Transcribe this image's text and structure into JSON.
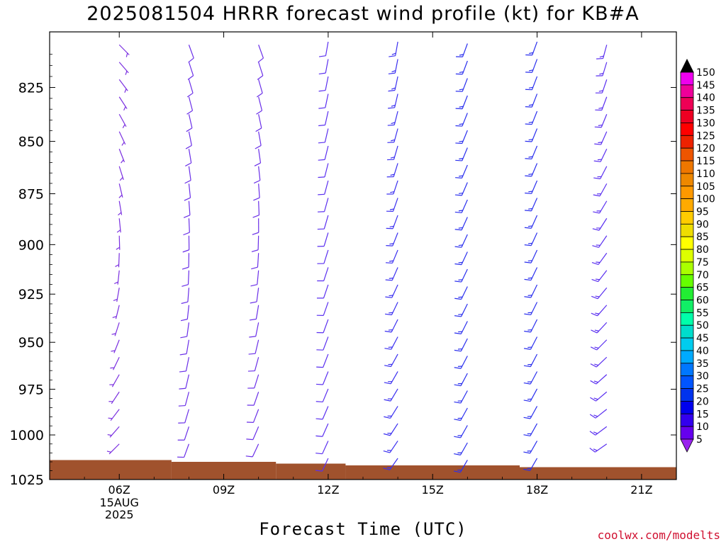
{
  "title": "2025081504 HRRR forecast wind profile (kt) for KB#A",
  "credit": "coolwx.com/modelts",
  "chart_data": {
    "type": "wind-barb-time-height",
    "xlabel": "Forecast Time (UTC)",
    "ylabel": "",
    "x_ticks": [
      {
        "hour": 6,
        "label": "06Z",
        "sublabels": [
          "15AUG",
          "2025"
        ]
      },
      {
        "hour": 9,
        "label": "09Z"
      },
      {
        "hour": 12,
        "label": "12Z"
      },
      {
        "hour": 15,
        "label": "15Z"
      },
      {
        "hour": 18,
        "label": "18Z"
      },
      {
        "hour": 21,
        "label": "21Z"
      }
    ],
    "xlim_hours": [
      4.0,
      22.0
    ],
    "y_ticks": [
      825,
      850,
      875,
      900,
      925,
      950,
      975,
      1000,
      1025
    ],
    "ylim_hPa": [
      800,
      1025
    ],
    "y_scale": "log-pressure (inverted)",
    "colorbar": {
      "unit": "kt",
      "labels": [
        150,
        145,
        140,
        135,
        130,
        125,
        120,
        115,
        110,
        105,
        100,
        95,
        90,
        85,
        80,
        75,
        70,
        65,
        60,
        55,
        50,
        45,
        40,
        35,
        30,
        25,
        20,
        15,
        10,
        5
      ],
      "colors": [
        "#ee00ee",
        "#ee0099",
        "#ee0055",
        "#ee0022",
        "#ff0000",
        "#ee2200",
        "#ee5500",
        "#ee7700",
        "#ee8800",
        "#ff9900",
        "#ffaa00",
        "#ffcc00",
        "#eedd00",
        "#ffff00",
        "#ddff00",
        "#aaff00",
        "#66ff00",
        "#22ee33",
        "#11ee66",
        "#00ffaa",
        "#00ddcc",
        "#00ccee",
        "#00aaff",
        "#0077ff",
        "#0055ff",
        "#0033ee",
        "#0000ee",
        "#3300ee",
        "#6600ee",
        "#9922ee"
      ]
    },
    "surface_pressure_hPa": [
      {
        "from_hour": 4.0,
        "to_hour": 7.5,
        "p": 1014
      },
      {
        "from_hour": 7.5,
        "to_hour": 10.5,
        "p": 1015
      },
      {
        "from_hour": 10.5,
        "to_hour": 12.5,
        "p": 1016
      },
      {
        "from_hour": 12.5,
        "to_hour": 17.5,
        "p": 1017
      },
      {
        "from_hour": 17.5,
        "to_hour": 22.0,
        "p": 1018
      }
    ],
    "surface_color": "#a0522d",
    "barb_columns": [
      {
        "hour": 6,
        "speed_kt": 5,
        "color": "#7a2fe0",
        "dir_upper_deg": 135,
        "dir_lower_deg": 225,
        "top_p": 805,
        "bottom_p": 1005
      },
      {
        "hour": 8,
        "speed_kt": 10,
        "color": "#6a2fe8",
        "dir_upper_deg": 160,
        "dir_lower_deg": 200,
        "top_p": 805,
        "bottom_p": 1005
      },
      {
        "hour": 10,
        "speed_kt": 10,
        "color": "#6a2fe8",
        "dir_upper_deg": 160,
        "dir_lower_deg": 205,
        "top_p": 805,
        "bottom_p": 1005
      },
      {
        "hour": 12,
        "speed_kt": 10,
        "color": "#5a2ff0",
        "dir_upper_deg": 190,
        "dir_lower_deg": 205,
        "top_p": 805,
        "bottom_p": 1013
      },
      {
        "hour": 14,
        "speed_kt": 15,
        "color": "#3a2ff0",
        "dir_upper_deg": 190,
        "dir_lower_deg": 215,
        "top_p": 805,
        "bottom_p": 1013
      },
      {
        "hour": 16,
        "speed_kt": 15,
        "color": "#2a2fee",
        "dir_upper_deg": 200,
        "dir_lower_deg": 210,
        "top_p": 805,
        "bottom_p": 1014
      },
      {
        "hour": 18,
        "speed_kt": 15,
        "color": "#2a2fee",
        "dir_upper_deg": 200,
        "dir_lower_deg": 210,
        "top_p": 805,
        "bottom_p": 1013
      },
      {
        "hour": 20,
        "speed_kt": 15,
        "color": "#5a2ff0",
        "dir_upper_deg": 195,
        "dir_lower_deg": 235,
        "top_p": 805,
        "bottom_p": 1005
      }
    ]
  }
}
